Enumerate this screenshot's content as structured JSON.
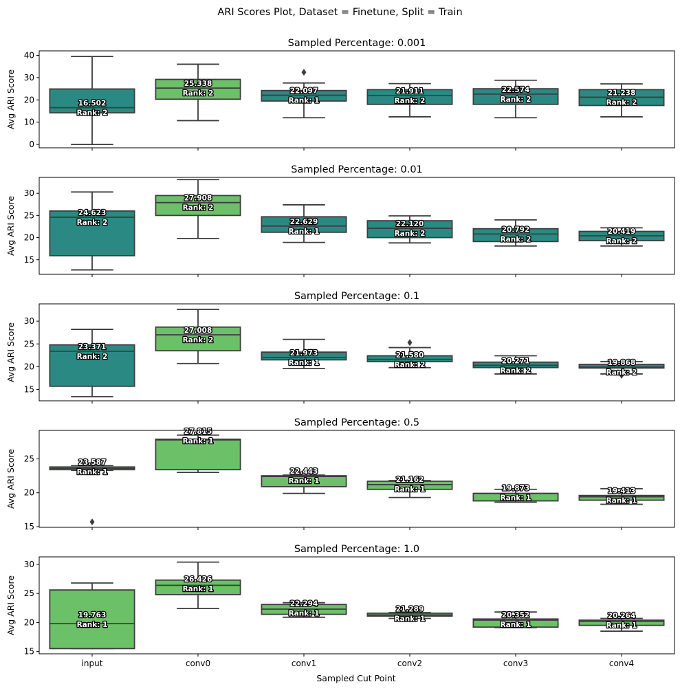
{
  "figure": {
    "title": "ARI Scores Plot, Dataset = Finetune, Split = Train",
    "xlabel": "Sampled Cut Point",
    "ylabel": "Avg ARI Score"
  },
  "colors": {
    "teal": "#2a8a83",
    "green": "#6cc067",
    "axis": "#000000",
    "line": "#3d3d3d"
  },
  "chart_data": [
    {
      "type": "box",
      "title": "Sampled Percentage: 0.001",
      "categories": [
        "input",
        "conv0",
        "conv1",
        "conv2",
        "conv3",
        "conv4"
      ],
      "ylabel": "Avg ARI Score",
      "ylim": [
        -1.5,
        42
      ],
      "yticks": [
        0,
        10,
        20,
        30,
        40
      ],
      "boxes": [
        {
          "min": 0,
          "q1": 14.2,
          "median": 16.5,
          "q3": 24.9,
          "max": 39.5,
          "outliers": [],
          "color": "teal",
          "mean_label": "16.502",
          "rank_label": "Rank: 2",
          "label_y": 16.5
        },
        {
          "min": 10.7,
          "q1": 20.3,
          "median": 25.3,
          "q3": 29.2,
          "max": 36.0,
          "outliers": [],
          "color": "green",
          "mean_label": "25.338",
          "rank_label": "Rank: 2",
          "label_y": 25.3
        },
        {
          "min": 12.0,
          "q1": 19.5,
          "median": 22.1,
          "q3": 24.2,
          "max": 27.6,
          "outliers": [
            32.4
          ],
          "color": "teal",
          "mean_label": "22.097",
          "rank_label": "Rank: 1",
          "label_y": 22.1
        },
        {
          "min": 12.4,
          "q1": 18.0,
          "median": 21.9,
          "q3": 24.6,
          "max": 27.3,
          "outliers": [],
          "color": "teal",
          "mean_label": "21.911",
          "rank_label": "Rank: 2",
          "label_y": 21.9
        },
        {
          "min": 12.0,
          "q1": 18.0,
          "median": 22.6,
          "q3": 25.0,
          "max": 28.8,
          "outliers": [],
          "color": "teal",
          "mean_label": "22.574",
          "rank_label": "Rank: 2",
          "label_y": 22.6
        },
        {
          "min": 12.4,
          "q1": 17.5,
          "median": 21.2,
          "q3": 24.6,
          "max": 27.2,
          "outliers": [],
          "color": "teal",
          "mean_label": "21.238",
          "rank_label": "Rank: 2",
          "label_y": 21.2
        }
      ]
    },
    {
      "type": "box",
      "title": "Sampled Percentage: 0.01",
      "categories": [
        "input",
        "conv0",
        "conv1",
        "conv2",
        "conv3",
        "conv4"
      ],
      "ylabel": "Avg ARI Score",
      "ylim": [
        11.7,
        33.6
      ],
      "yticks": [
        15,
        20,
        25,
        30
      ],
      "boxes": [
        {
          "min": 12.7,
          "q1": 15.9,
          "median": 24.6,
          "q3": 26.0,
          "max": 30.3,
          "outliers": [],
          "color": "teal",
          "mean_label": "24.623",
          "rank_label": "Rank: 2",
          "label_y": 24.6
        },
        {
          "min": 19.8,
          "q1": 25.0,
          "median": 27.9,
          "q3": 29.5,
          "max": 33.1,
          "outliers": [],
          "color": "green",
          "mean_label": "27.908",
          "rank_label": "Rank: 2",
          "label_y": 27.9
        },
        {
          "min": 18.9,
          "q1": 21.2,
          "median": 22.6,
          "q3": 24.7,
          "max": 27.4,
          "outliers": [],
          "color": "teal",
          "mean_label": "22.629",
          "rank_label": "Rank: 1",
          "label_y": 22.6
        },
        {
          "min": 18.8,
          "q1": 20.0,
          "median": 22.1,
          "q3": 23.8,
          "max": 24.9,
          "outliers": [],
          "color": "teal",
          "mean_label": "22.120",
          "rank_label": "Rank: 2",
          "label_y": 22.1
        },
        {
          "min": 18.1,
          "q1": 19.1,
          "median": 20.8,
          "q3": 22.0,
          "max": 24.0,
          "outliers": [],
          "color": "teal",
          "mean_label": "20.792",
          "rank_label": "Rank: 2",
          "label_y": 20.8
        },
        {
          "min": 18.1,
          "q1": 19.3,
          "median": 20.4,
          "q3": 21.4,
          "max": 22.2,
          "outliers": [],
          "color": "teal",
          "mean_label": "20.419",
          "rank_label": "Rank: 2",
          "label_y": 20.4
        }
      ]
    },
    {
      "type": "box",
      "title": "Sampled Percentage: 0.1",
      "categories": [
        "input",
        "conv0",
        "conv1",
        "conv2",
        "conv3",
        "conv4"
      ],
      "ylabel": "Avg ARI Score",
      "ylim": [
        12.5,
        33.8
      ],
      "yticks": [
        15,
        20,
        25,
        30
      ],
      "boxes": [
        {
          "min": 13.4,
          "q1": 15.7,
          "median": 23.4,
          "q3": 24.8,
          "max": 28.2,
          "outliers": [],
          "color": "teal",
          "mean_label": "23.371",
          "rank_label": "Rank: 2",
          "label_y": 23.4
        },
        {
          "min": 20.7,
          "q1": 23.5,
          "median": 27.0,
          "q3": 28.7,
          "max": 32.6,
          "outliers": [],
          "color": "green",
          "mean_label": "27.008",
          "rank_label": "Rank: 2",
          "label_y": 27.0
        },
        {
          "min": 19.6,
          "q1": 21.5,
          "median": 22.0,
          "q3": 23.2,
          "max": 26.0,
          "outliers": [],
          "color": "teal",
          "mean_label": "21.973",
          "rank_label": "Rank: 1",
          "label_y": 22.0
        },
        {
          "min": 19.8,
          "q1": 21.1,
          "median": 21.6,
          "q3": 22.4,
          "max": 24.2,
          "outliers": [
            25.3
          ],
          "color": "teal",
          "mean_label": "21.580",
          "rank_label": "Rank: 2",
          "label_y": 21.6
        },
        {
          "min": 18.4,
          "q1": 19.8,
          "median": 20.3,
          "q3": 21.0,
          "max": 22.4,
          "outliers": [],
          "color": "teal",
          "mean_label": "20.271",
          "rank_label": "Rank: 2",
          "label_y": 20.3
        },
        {
          "min": 18.4,
          "q1": 19.7,
          "median": 19.9,
          "q3": 20.5,
          "max": 21.1,
          "outliers": [
            18.1
          ],
          "color": "teal",
          "mean_label": "19.868",
          "rank_label": "Rank: 2",
          "label_y": 19.9
        }
      ]
    },
    {
      "type": "box",
      "title": "Sampled Percentage: 0.5",
      "categories": [
        "input",
        "conv0",
        "conv1",
        "conv2",
        "conv3",
        "conv4"
      ],
      "ylabel": "Avg ARI Score",
      "ylim": [
        14.9,
        29.2
      ],
      "yticks": [
        15,
        20,
        25
      ],
      "boxes": [
        {
          "min": 23.3,
          "q1": 23.4,
          "median": 23.6,
          "q3": 23.8,
          "max": 24.0,
          "outliers": [
            15.7
          ],
          "color": "green",
          "mean_label": "23.587",
          "rank_label": "Rank: 1",
          "label_y": 23.8
        },
        {
          "min": 23.0,
          "q1": 23.4,
          "median": 27.8,
          "q3": 27.9,
          "max": 28.5,
          "outliers": [],
          "color": "green",
          "mean_label": "27.815",
          "rank_label": "Rank: 1",
          "label_y": 28.4
        },
        {
          "min": 19.9,
          "q1": 20.9,
          "median": 22.4,
          "q3": 22.5,
          "max": 22.6,
          "outliers": [],
          "color": "green",
          "mean_label": "22.443",
          "rank_label": "Rank: 1",
          "label_y": 22.5
        },
        {
          "min": 19.3,
          "q1": 20.5,
          "median": 21.2,
          "q3": 21.7,
          "max": 21.8,
          "outliers": [],
          "color": "green",
          "mean_label": "21.162",
          "rank_label": "Rank: 1",
          "label_y": 21.3
        },
        {
          "min": 18.6,
          "q1": 18.8,
          "median": 19.9,
          "q3": 19.9,
          "max": 20.5,
          "outliers": [],
          "color": "green",
          "mean_label": "19.873",
          "rank_label": "Rank: 1",
          "label_y": 20.0
        },
        {
          "min": 18.3,
          "q1": 18.9,
          "median": 19.4,
          "q3": 19.6,
          "max": 20.6,
          "outliers": [],
          "color": "green",
          "mean_label": "19.413",
          "rank_label": "Rank: 1",
          "label_y": 19.6
        }
      ]
    },
    {
      "type": "box",
      "title": "Sampled Percentage: 1.0",
      "categories": [
        "input",
        "conv0",
        "conv1",
        "conv2",
        "conv3",
        "conv4"
      ],
      "ylabel": "Avg ARI Score",
      "ylim": [
        14.6,
        31.3
      ],
      "yticks": [
        15,
        20,
        25,
        30
      ],
      "boxes": [
        {
          "min": 15.5,
          "q1": 15.5,
          "median": 19.8,
          "q3": 25.6,
          "max": 26.8,
          "outliers": [],
          "color": "green",
          "mean_label": "19.763",
          "rank_label": "Rank: 1",
          "label_y": 20.5
        },
        {
          "min": 22.4,
          "q1": 24.8,
          "median": 26.4,
          "q3": 27.3,
          "max": 30.4,
          "outliers": [],
          "color": "green",
          "mean_label": "26.426",
          "rank_label": "Rank: 1",
          "label_y": 26.7
        },
        {
          "min": 20.9,
          "q1": 21.4,
          "median": 22.3,
          "q3": 23.1,
          "max": 23.4,
          "outliers": [],
          "color": "green",
          "mean_label": "22.294",
          "rank_label": "Rank: 1",
          "label_y": 22.5
        },
        {
          "min": 20.7,
          "q1": 21.1,
          "median": 21.3,
          "q3": 21.6,
          "max": 21.7,
          "outliers": [],
          "color": "green",
          "mean_label": "21.289",
          "rank_label": "Rank: 1",
          "label_y": 21.5
        },
        {
          "min": 19.1,
          "q1": 19.2,
          "median": 20.4,
          "q3": 20.6,
          "max": 21.8,
          "outliers": [],
          "color": "green",
          "mean_label": "20.352",
          "rank_label": "Rank: 1",
          "label_y": 20.5
        },
        {
          "min": 18.5,
          "q1": 19.5,
          "median": 20.2,
          "q3": 20.4,
          "max": 20.7,
          "outliers": [],
          "color": "green",
          "mean_label": "20.264",
          "rank_label": "Rank: 1",
          "label_y": 20.4
        }
      ]
    }
  ]
}
